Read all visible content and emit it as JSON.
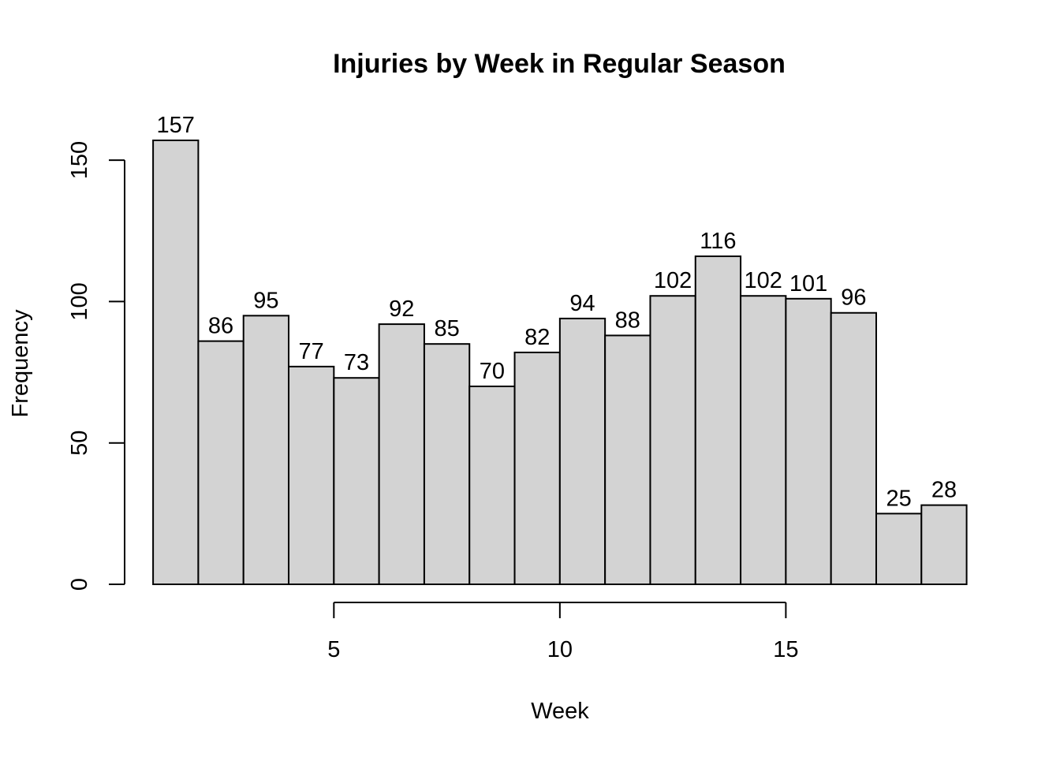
{
  "chart_data": {
    "type": "bar",
    "title": "Injuries by Week in Regular Season",
    "xlabel": "Week",
    "ylabel": "Frequency",
    "bin_edges": [
      1,
      2,
      3,
      4,
      5,
      6,
      7,
      8,
      9,
      10,
      11,
      12,
      13,
      14,
      15,
      16,
      17,
      18,
      19
    ],
    "values": [
      157,
      86,
      95,
      77,
      73,
      92,
      85,
      70,
      82,
      94,
      88,
      102,
      116,
      102,
      101,
      96,
      25,
      28
    ],
    "x_ticks": [
      5,
      10,
      15
    ],
    "y_ticks": [
      0,
      50,
      100,
      150
    ],
    "xlim": [
      0.37,
      19.67
    ],
    "ylim": [
      0,
      157
    ],
    "bar_color": "#d3d3d3",
    "grid": false,
    "legend": "none"
  }
}
